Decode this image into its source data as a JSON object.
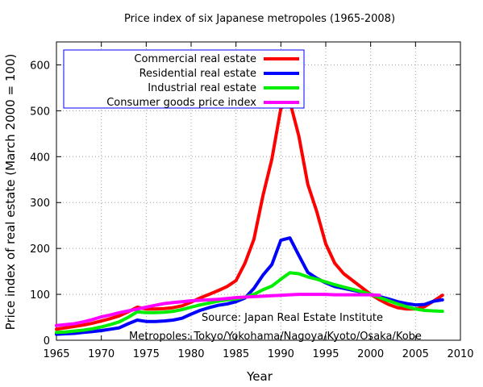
{
  "chart_data": {
    "type": "line",
    "title": "Price index of six Japanese metropoles (1965-2008)",
    "xlabel": "Year",
    "ylabel": "Price index of real estate (March 2000 = 100)",
    "xlim": [
      1965,
      2010
    ],
    "ylim": [
      0,
      650
    ],
    "x_ticks": [
      "1965",
      "1970",
      "1975",
      "1980",
      "1985",
      "1990",
      "1995",
      "2000",
      "2005",
      "2010"
    ],
    "y_ticks": [
      "0",
      "100",
      "200",
      "300",
      "400",
      "500",
      "600"
    ],
    "grid": true,
    "legend_position": "top-left",
    "annotations": [
      "Source: Japan Real Estate Institute",
      "Metropoles: Tokyo/Yokohama/Nagoya/Kyoto/Osaka/Kobe"
    ],
    "series": [
      {
        "name": "Commercial real estate",
        "color": "#ff0000",
        "points": [
          [
            1965,
            24
          ],
          [
            1966,
            27
          ],
          [
            1967,
            30
          ],
          [
            1968,
            33
          ],
          [
            1969,
            37
          ],
          [
            1970,
            42
          ],
          [
            1971,
            47
          ],
          [
            1972,
            53
          ],
          [
            1973,
            62
          ],
          [
            1974,
            72
          ],
          [
            1975,
            68
          ],
          [
            1976,
            68
          ],
          [
            1977,
            69
          ],
          [
            1978,
            71
          ],
          [
            1979,
            75
          ],
          [
            1980,
            83
          ],
          [
            1981,
            92
          ],
          [
            1982,
            100
          ],
          [
            1983,
            108
          ],
          [
            1984,
            117
          ],
          [
            1985,
            130
          ],
          [
            1986,
            168
          ],
          [
            1987,
            220
          ],
          [
            1988,
            315
          ],
          [
            1989,
            395
          ],
          [
            1990,
            505
          ],
          [
            1991,
            520
          ],
          [
            1992,
            445
          ],
          [
            1993,
            340
          ],
          [
            1994,
            280
          ],
          [
            1995,
            210
          ],
          [
            1996,
            168
          ],
          [
            1997,
            145
          ],
          [
            1998,
            130
          ],
          [
            1999,
            115
          ],
          [
            2000,
            100
          ],
          [
            2001,
            88
          ],
          [
            2002,
            78
          ],
          [
            2003,
            71
          ],
          [
            2004,
            68
          ],
          [
            2005,
            68
          ],
          [
            2006,
            73
          ],
          [
            2007,
            85
          ],
          [
            2008,
            98
          ]
        ]
      },
      {
        "name": "Residential real estate",
        "color": "#0000ff",
        "points": [
          [
            1965,
            13
          ],
          [
            1966,
            14
          ],
          [
            1967,
            15
          ],
          [
            1968,
            17
          ],
          [
            1969,
            19
          ],
          [
            1970,
            21
          ],
          [
            1971,
            24
          ],
          [
            1972,
            27
          ],
          [
            1973,
            36
          ],
          [
            1974,
            44
          ],
          [
            1975,
            41
          ],
          [
            1976,
            41
          ],
          [
            1977,
            42
          ],
          [
            1978,
            44
          ],
          [
            1979,
            48
          ],
          [
            1980,
            57
          ],
          [
            1981,
            65
          ],
          [
            1982,
            71
          ],
          [
            1983,
            76
          ],
          [
            1984,
            79
          ],
          [
            1985,
            84
          ],
          [
            1986,
            92
          ],
          [
            1987,
            113
          ],
          [
            1988,
            142
          ],
          [
            1989,
            165
          ],
          [
            1990,
            218
          ],
          [
            1991,
            223
          ],
          [
            1992,
            185
          ],
          [
            1993,
            148
          ],
          [
            1994,
            135
          ],
          [
            1995,
            125
          ],
          [
            1996,
            117
          ],
          [
            1997,
            113
          ],
          [
            1998,
            109
          ],
          [
            1999,
            105
          ],
          [
            2000,
            100
          ],
          [
            2001,
            95
          ],
          [
            2002,
            90
          ],
          [
            2003,
            84
          ],
          [
            2004,
            80
          ],
          [
            2005,
            77
          ],
          [
            2006,
            78
          ],
          [
            2007,
            85
          ],
          [
            2008,
            88
          ]
        ]
      },
      {
        "name": "Industrial real estate",
        "color": "#00ee00",
        "points": [
          [
            1965,
            17
          ],
          [
            1966,
            18
          ],
          [
            1967,
            20
          ],
          [
            1968,
            22
          ],
          [
            1969,
            25
          ],
          [
            1970,
            29
          ],
          [
            1971,
            34
          ],
          [
            1972,
            40
          ],
          [
            1973,
            50
          ],
          [
            1974,
            62
          ],
          [
            1975,
            60
          ],
          [
            1976,
            60
          ],
          [
            1977,
            61
          ],
          [
            1978,
            63
          ],
          [
            1979,
            67
          ],
          [
            1980,
            72
          ],
          [
            1981,
            77
          ],
          [
            1982,
            81
          ],
          [
            1983,
            85
          ],
          [
            1984,
            88
          ],
          [
            1985,
            90
          ],
          [
            1986,
            94
          ],
          [
            1987,
            100
          ],
          [
            1988,
            110
          ],
          [
            1989,
            118
          ],
          [
            1990,
            133
          ],
          [
            1991,
            147
          ],
          [
            1992,
            145
          ],
          [
            1993,
            138
          ],
          [
            1994,
            133
          ],
          [
            1995,
            127
          ],
          [
            1996,
            121
          ],
          [
            1997,
            116
          ],
          [
            1998,
            111
          ],
          [
            1999,
            106
          ],
          [
            2000,
            100
          ],
          [
            2001,
            93
          ],
          [
            2002,
            86
          ],
          [
            2003,
            79
          ],
          [
            2004,
            73
          ],
          [
            2005,
            68
          ],
          [
            2006,
            65
          ],
          [
            2007,
            64
          ],
          [
            2008,
            63
          ]
        ]
      },
      {
        "name": "Consumer goods price index",
        "color": "#ff00ff",
        "points": [
          [
            1965,
            32
          ],
          [
            1966,
            34
          ],
          [
            1967,
            36
          ],
          [
            1968,
            40
          ],
          [
            1969,
            45
          ],
          [
            1970,
            51
          ],
          [
            1971,
            55
          ],
          [
            1972,
            60
          ],
          [
            1973,
            64
          ],
          [
            1974,
            68
          ],
          [
            1975,
            72
          ],
          [
            1976,
            76
          ],
          [
            1977,
            80
          ],
          [
            1978,
            82
          ],
          [
            1979,
            84
          ],
          [
            1980,
            86
          ],
          [
            1981,
            87
          ],
          [
            1982,
            88
          ],
          [
            1983,
            89
          ],
          [
            1984,
            91
          ],
          [
            1985,
            93
          ],
          [
            1986,
            94
          ],
          [
            1987,
            95
          ],
          [
            1988,
            96
          ],
          [
            1989,
            97
          ],
          [
            1990,
            98
          ],
          [
            1991,
            99
          ],
          [
            1992,
            100
          ],
          [
            1993,
            100
          ],
          [
            1994,
            100
          ],
          [
            1995,
            100
          ],
          [
            1996,
            99
          ],
          [
            1997,
            99
          ],
          [
            1998,
            99
          ],
          [
            1999,
            99
          ],
          [
            2000,
            99
          ],
          [
            2001,
            98
          ]
        ]
      }
    ]
  }
}
